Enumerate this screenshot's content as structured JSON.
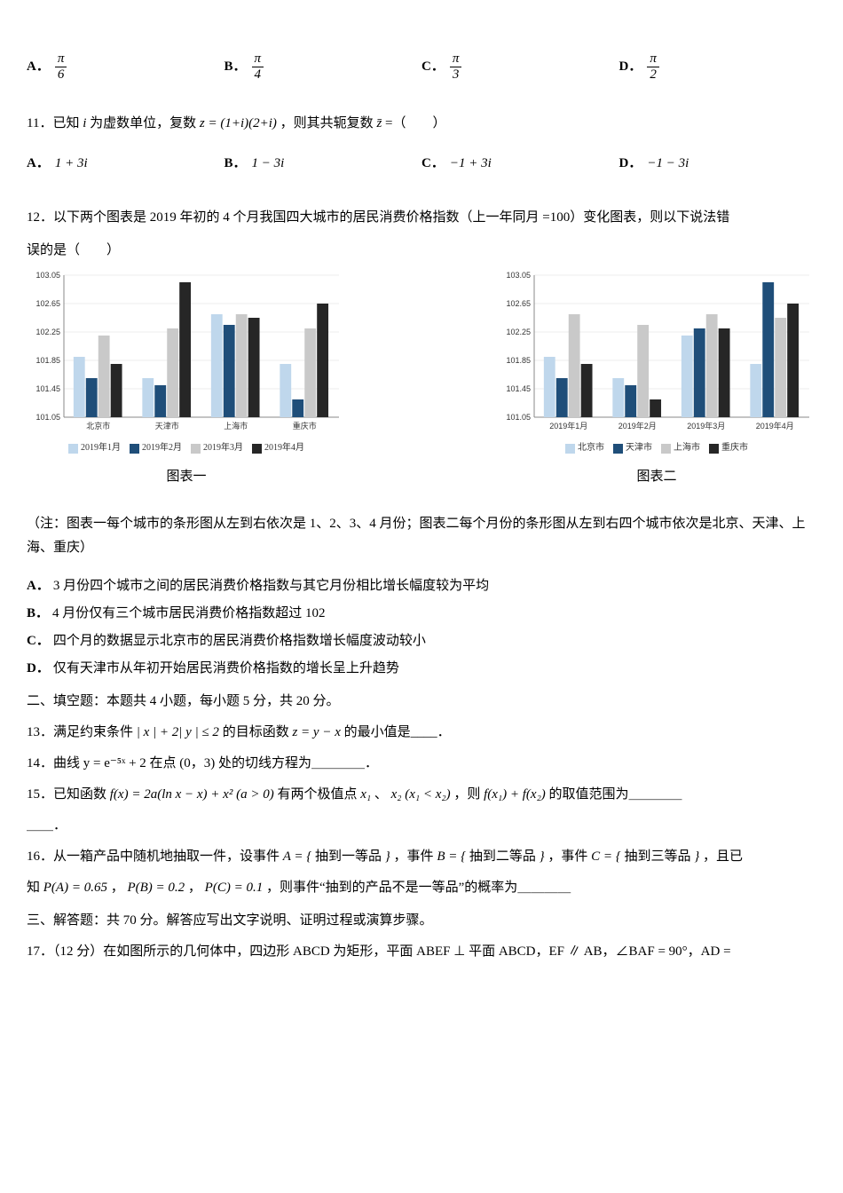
{
  "q_options": {
    "A": {
      "num": "π",
      "den": "6"
    },
    "B": {
      "num": "π",
      "den": "4"
    },
    "C": {
      "num": "π",
      "den": "3"
    },
    "D": {
      "num": "π",
      "den": "2"
    }
  },
  "q11": {
    "stem_pre": "11．已知 ",
    "stem_i": "i",
    "stem_mid": " 为虚数单位，复数 ",
    "stem_z": "z = (1+i)(2+i)",
    "stem_post": "，则其共轭复数 ",
    "stem_zbar": "z̄",
    "stem_eq": " =（　　）",
    "options": {
      "A": "1 + 3i",
      "B": "1 − 3i",
      "C": "−1 + 3i",
      "D": "−1 − 3i"
    }
  },
  "q12": {
    "stem": "12．以下两个图表是 2019 年初的 4 个月我国四大城市的居民消费价格指数（上一年同月 =100）变化图表，则以下说法错",
    "stem_line2": "误的是（　　）",
    "ymin": 101.05,
    "ymax": 103.05,
    "yticks": [
      101.05,
      101.45,
      101.85,
      102.25,
      102.65,
      103.05
    ],
    "chart1": {
      "title": "图表一",
      "categories": [
        "北京市",
        "天津市",
        "上海市",
        "重庆市"
      ],
      "series_labels": [
        "2019年1月",
        "2019年2月",
        "2019年3月",
        "2019年4月"
      ],
      "series_colors": [
        "#bfd7ec",
        "#1f4e79",
        "#c9c9c9",
        "#262626"
      ],
      "values": [
        [
          101.9,
          101.6,
          102.2,
          101.8
        ],
        [
          101.6,
          101.5,
          102.3,
          102.95
        ],
        [
          102.5,
          102.35,
          102.5,
          102.45
        ],
        [
          101.8,
          101.3,
          102.3,
          102.65
        ]
      ]
    },
    "chart2": {
      "title": "图表二",
      "categories": [
        "2019年1月",
        "2019年2月",
        "2019年3月",
        "2019年4月"
      ],
      "series_labels": [
        "北京市",
        "天津市",
        "上海市",
        "重庆市"
      ],
      "series_colors": [
        "#bfd7ec",
        "#1f4e79",
        "#c9c9c9",
        "#262626"
      ],
      "values": [
        [
          101.9,
          101.6,
          102.5,
          101.8
        ],
        [
          101.6,
          101.5,
          102.35,
          101.3
        ],
        [
          102.2,
          102.3,
          102.5,
          102.3
        ],
        [
          101.8,
          102.95,
          102.45,
          102.65
        ]
      ]
    },
    "note": "（注：图表一每个城市的条形图从左到右依次是 1、2、3、4 月份；图表二每个月份的条形图从左到右四个城市依次是北京、天津、上海、重庆）",
    "choices": {
      "A": "3 月份四个城市之间的居民消费价格指数与其它月份相比增长幅度较为平均",
      "B": "4 月份仅有三个城市居民消费价格指数超过 102",
      "C": "四个月的数据显示北京市的居民消费价格指数增长幅度波动较小",
      "D": "仅有天津市从年初开始居民消费价格指数的增长呈上升趋势"
    }
  },
  "sec2": "二、填空题：本题共 4 小题，每小题 5 分，共 20 分。",
  "q13": {
    "pre": "13．满足约束条件 ",
    "cond": "| x | + 2| y | ≤ 2",
    "mid": " 的目标函数 ",
    "obj": "z = y − x",
    "post": " 的最小值是____．"
  },
  "q14": "14．曲线 y = e⁻⁵ˣ + 2 在点 (0，3) 处的切线方程为＿＿＿＿．",
  "q15": {
    "pre": "15．已知函数 ",
    "fx": "f(x) = 2a(ln x − x) + x² (a > 0)",
    "mid": " 有两个极值点 ",
    "x1": "x₁",
    "comma": "、",
    "x2": "x₂",
    "cond": "(x₁ < x₂)",
    "then": "，则 ",
    "sum": "f(x₁) + f(x₂)",
    "post": " 的取值范围为＿＿＿＿",
    "line2": "＿＿．"
  },
  "q16": {
    "pre": "16．从一箱产品中随机地抽取一件，设事件 ",
    "A": "A = {",
    "A_desc": "抽到一等品",
    "close": "}",
    "sep1": "，事件 ",
    "B": "B = {",
    "B_desc": "抽到二等品",
    "sep2": "，事件 ",
    "C": "C = {",
    "C_desc": "抽到三等品",
    "tail": "，且已",
    "line2_pre": "知 ",
    "PA": "P(A) = 0.65",
    "PB": "P(B) = 0.2",
    "PC": "P(C) = 0.1",
    "post": "，则事件“抽到的产品不是一等品”的概率为＿＿＿＿"
  },
  "sec3": "三、解答题：共 70 分。解答应写出文字说明、证明过程或演算步骤。",
  "q17": "17．（12 分）在如图所示的几何体中，四边形 ABCD 为矩形，平面 ABEF ⊥ 平面 ABCD，EF ∥ AB，∠BAF = 90°，AD ="
}
